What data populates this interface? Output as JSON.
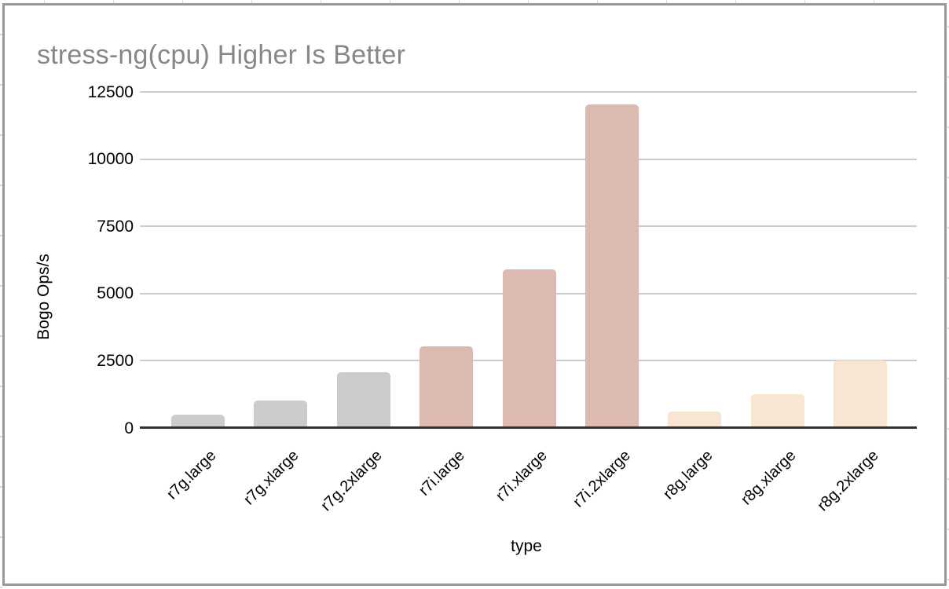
{
  "chart_data": {
    "type": "bar",
    "title": "stress-ng(cpu) Higher Is Better",
    "xlabel": "type",
    "ylabel": "Bogo Ops/s",
    "categories": [
      "r7g.large",
      "r7g.xlarge",
      "r7g.2xlarge",
      "r7i.large",
      "r7i.xlarge",
      "r7i.2xlarge",
      "r8g.large",
      "r8g.xlarge",
      "r8g.2xlarge"
    ],
    "values": [
      500,
      1030,
      2070,
      3050,
      5910,
      12030,
      620,
      1260,
      2500
    ],
    "bar_colors": [
      "#cccccc",
      "#cccccc",
      "#cccccc",
      "#dcb9b1",
      "#dcb9b1",
      "#dcb9b1",
      "#f8e5d2",
      "#f8e5d2",
      "#f8e5d2"
    ],
    "series_groups": [
      {
        "name": "r7g",
        "color": "#cccccc"
      },
      {
        "name": "r7i",
        "color": "#dcb9b1"
      },
      {
        "name": "r8g",
        "color": "#f8e5d2"
      }
    ],
    "yticks": [
      0,
      2500,
      5000,
      7500,
      10000,
      12500
    ],
    "ylim": [
      0,
      12500
    ],
    "grid": "horizontal-only",
    "legend": "none",
    "colors": {
      "title_text": "#878787",
      "axis_text": "#000000",
      "gridline": "#cccccc",
      "axis_line": "#333333",
      "frame_border": "#999999",
      "background": "#ffffff"
    }
  }
}
